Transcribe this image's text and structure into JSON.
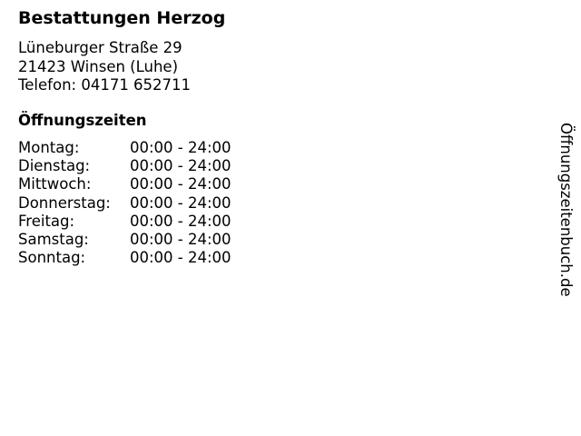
{
  "business": {
    "name": "Bestattungen Herzog",
    "street": "Lüneburger Straße 29",
    "city": "21423 Winsen (Luhe)",
    "phone": "Telefon: 04171 652711"
  },
  "opening_hours": {
    "heading": "Öffnungszeiten",
    "rows": [
      {
        "day": "Montag:",
        "time": "00:00 - 24:00"
      },
      {
        "day": "Dienstag:",
        "time": "00:00 - 24:00"
      },
      {
        "day": "Mittwoch:",
        "time": "00:00 - 24:00"
      },
      {
        "day": "Donnerstag:",
        "time": "00:00 - 24:00"
      },
      {
        "day": "Freitag:",
        "time": "00:00 - 24:00"
      },
      {
        "day": "Samstag:",
        "time": "00:00 - 24:00"
      },
      {
        "day": "Sonntag:",
        "time": "00:00 - 24:00"
      }
    ]
  },
  "watermark": "Öffnungszeitenbuch.de"
}
